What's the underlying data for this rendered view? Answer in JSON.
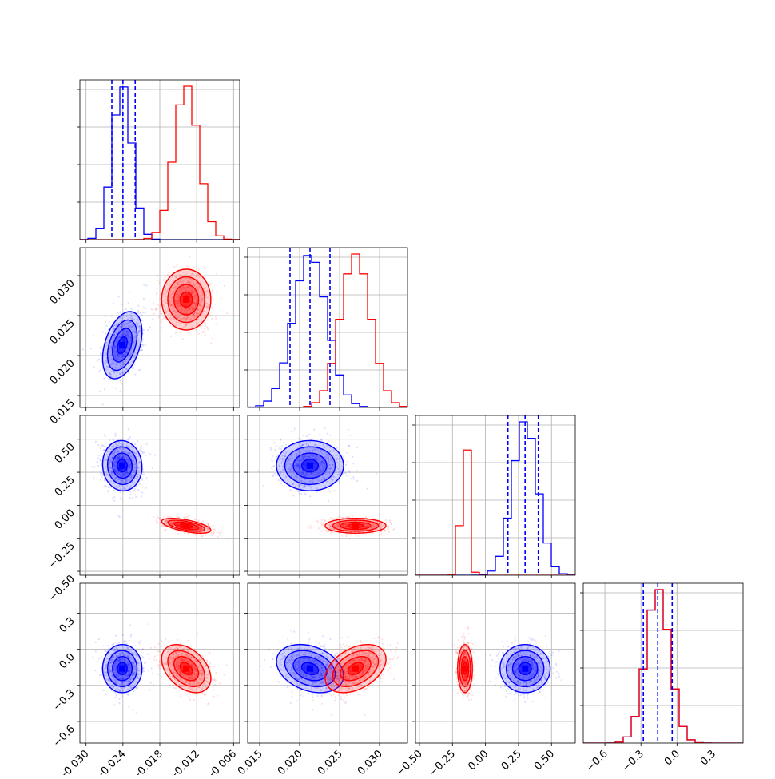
{
  "figure": {
    "title": "",
    "type": "corner-plot"
  },
  "colors": {
    "blue_series": "#0000ff",
    "red_series": "#ff0000",
    "grid": "#b0b0b0",
    "axes": "#000000"
  },
  "chart_data": {
    "type": "corner",
    "n_params": 4,
    "axis_labels": [
      "",
      "",
      "",
      ""
    ],
    "ranges": [
      [
        -0.031,
        -0.005
      ],
      [
        0.0135,
        0.0335
      ],
      [
        -0.53,
        0.68
      ],
      [
        -0.78,
        0.55
      ]
    ],
    "ticks": [
      [
        -0.03,
        -0.024,
        -0.018,
        -0.012,
        -0.006
      ],
      [
        0.015,
        0.02,
        0.025,
        0.03
      ],
      [
        -0.5,
        -0.25,
        0.0,
        0.25,
        0.5
      ],
      [
        -0.6,
        -0.3,
        0.0,
        0.3
      ]
    ],
    "tick_labels": [
      [
        "−0.030",
        "−0.024",
        "−0.018",
        "−0.012",
        "−0.006"
      ],
      [
        "0.015",
        "0.020",
        "0.025",
        "0.030"
      ],
      [
        "−0.50",
        "−0.25",
        "0.00",
        "0.25",
        "0.50"
      ],
      [
        "−0.6",
        "−0.3",
        "0.0",
        "0.3"
      ]
    ],
    "grid": true,
    "series": [
      {
        "color": "#0000ff",
        "mean": [
          -0.0241,
          0.0213,
          0.3,
          -0.16
        ],
        "std": [
          0.0016,
          0.0021,
          0.095,
          0.1
        ],
        "corr": [
          [
            1,
            0.4,
            -0.05,
            0.0
          ],
          [
            0.4,
            1,
            0.0,
            -0.3
          ],
          [
            -0.05,
            0.0,
            1,
            0.0
          ],
          [
            0.0,
            -0.3,
            0.0,
            1
          ]
        ],
        "quantiles": [
          [
            -0.0258,
            -0.024,
            -0.022
          ],
          [
            0.0188,
            0.0213,
            0.0238
          ],
          [
            0.17,
            0.3,
            0.4
          ],
          [
            -0.28,
            -0.16,
            -0.04
          ]
        ]
      },
      {
        "color": "#ff0000",
        "mean": [
          -0.0137,
          0.027,
          -0.155,
          -0.16
        ],
        "std": [
          0.002,
          0.0019,
          0.028,
          0.1
        ],
        "corr": [
          [
            1,
            0.0,
            -0.6,
            -0.4
          ],
          [
            0.0,
            1,
            0.0,
            0.4
          ],
          [
            -0.6,
            0.0,
            1,
            0.0
          ],
          [
            -0.4,
            0.4,
            0.0,
            1
          ]
        ]
      }
    ],
    "contour_levels_sigma": [
      0.5,
      1.0,
      1.5,
      2.0
    ]
  }
}
